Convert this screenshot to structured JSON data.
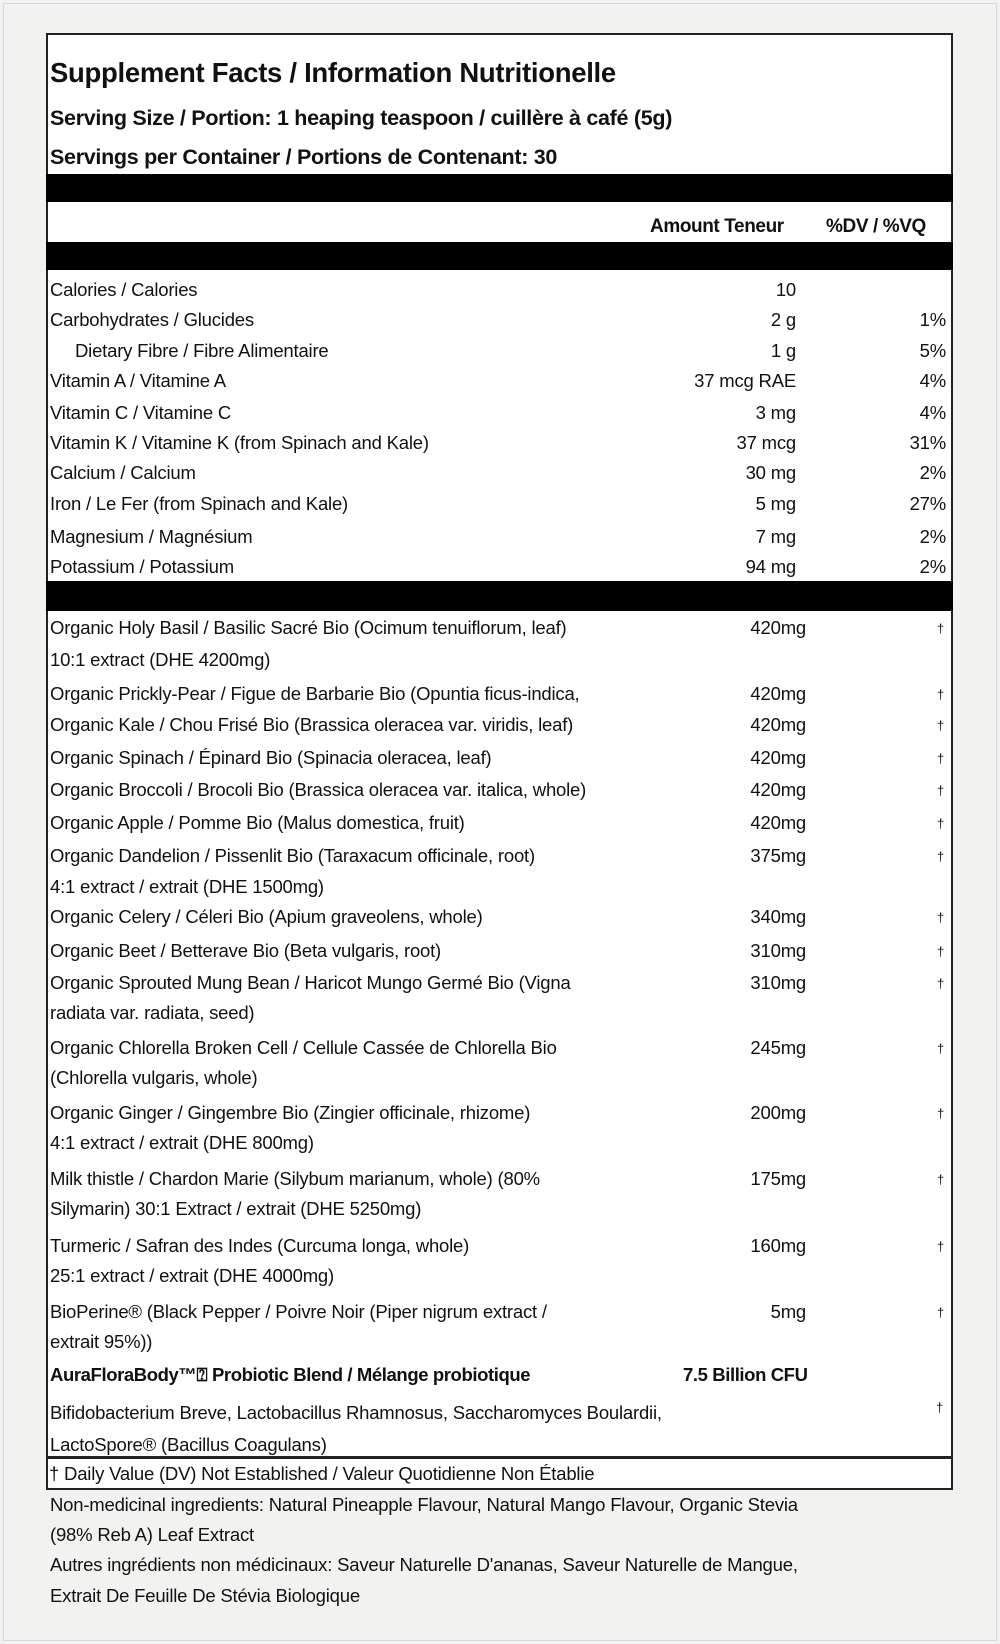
{
  "header": {
    "title": "Supplement Facts / Information Nutritionelle",
    "serving_size": "Serving Size / Portion: 1 heaping teaspoon / cuillère à café (5g)",
    "servings_per_container": "Servings per Container / Portions de Contenant: 30",
    "amount_col": "Amount Teneur",
    "dv_col": "%DV / %VQ"
  },
  "nutrients": [
    {
      "name": "Calories / Calories",
      "amount": "10",
      "dv": ""
    },
    {
      "name": "Carbohydrates / Glucides",
      "amount": "2 g",
      "dv": "1%"
    },
    {
      "name": "Dietary Fibre / Fibre Alimentaire",
      "amount": "1 g",
      "dv": "5%",
      "indent": true
    },
    {
      "name": "Vitamin A / Vitamine A",
      "amount": "37 mcg RAE",
      "dv": "4%"
    },
    {
      "name": "Vitamin C / Vitamine C",
      "amount": "3 mg",
      "dv": "4%"
    },
    {
      "name": "Vitamin K / Vitamine K (from Spinach and Kale)",
      "amount": "37 mcg",
      "dv": "31%"
    },
    {
      "name": "Calcium / Calcium",
      "amount": "30 mg",
      "dv": "2%"
    },
    {
      "name": "Iron / Le Fer (from Spinach and Kale)",
      "amount": "5 mg",
      "dv": "27%"
    },
    {
      "name": "Magnesium / Magnésium",
      "amount": "7 mg",
      "dv": "2%"
    },
    {
      "name": "Potassium / Potassium",
      "amount": "94 mg",
      "dv": "2%"
    }
  ],
  "ingredients": [
    {
      "lines": [
        "Organic Holy Basil / Basilic Sacré Bio (Ocimum tenuiflorum, leaf)",
        "10:1 extract (DHE 4200mg)"
      ],
      "amount": "420mg",
      "dv": "†"
    },
    {
      "lines": [
        "Organic Prickly-Pear / Figue de Barbarie Bio (Opuntia ficus-indica,"
      ],
      "amount": "420mg",
      "dv": "†"
    },
    {
      "lines": [
        "Organic Kale / Chou Frisé Bio (Brassica oleracea var. viridis, leaf)"
      ],
      "amount": "420mg",
      "dv": "†"
    },
    {
      "lines": [
        "Organic Spinach / Épinard Bio (Spinacia oleracea, leaf)"
      ],
      "amount": "420mg",
      "dv": "†"
    },
    {
      "lines": [
        "Organic Broccoli / Brocoli Bio (Brassica oleracea var. italica, whole)"
      ],
      "amount": "420mg",
      "dv": "†"
    },
    {
      "lines": [
        "Organic Apple / Pomme Bio (Malus domestica, fruit)"
      ],
      "amount": "420mg",
      "dv": "†"
    },
    {
      "lines": [
        "Organic Dandelion / Pissenlit Bio (Taraxacum officinale, root)",
        "4:1 extract / extrait (DHE 1500mg)"
      ],
      "amount": "375mg",
      "dv": "†"
    },
    {
      "lines": [
        "Organic Celery / Céleri Bio (Apium graveolens, whole)"
      ],
      "amount": "340mg",
      "dv": "†"
    },
    {
      "lines": [
        "Organic Beet / Betterave Bio (Beta vulgaris, root)"
      ],
      "amount": "310mg",
      "dv": "†"
    },
    {
      "lines": [
        "Organic Sprouted Mung Bean / Haricot Mungo Germé Bio (Vigna",
        "radiata var. radiata, seed)"
      ],
      "amount": "310mg",
      "dv": "†"
    },
    {
      "lines": [
        "Organic Chlorella Broken Cell / Cellule Cassée de Chlorella Bio",
        "(Chlorella vulgaris, whole)"
      ],
      "amount": "245mg",
      "dv": "†"
    },
    {
      "lines": [
        "Organic Ginger / Gingembre Bio (Zingier officinale, rhizome)",
        "4:1 extract / extrait (DHE 800mg)"
      ],
      "amount": "200mg",
      "dv": "†"
    },
    {
      "lines": [
        "Milk thistle / Chardon Marie (Silybum marianum, whole) (80%",
        "Silymarin) 30:1 Extract / extrait (DHE 5250mg)"
      ],
      "amount": "175mg",
      "dv": "†"
    },
    {
      "lines": [
        "Turmeric / Safran des Indes (Curcuma longa, whole)",
        "25:1 extract / extrait (DHE 4000mg)"
      ],
      "amount": "160mg",
      "dv": "†"
    },
    {
      "lines": [
        "BioPerine® (Black Pepper / Poivre Noir (Piper nigrum extract /",
        "extrait 95%))"
      ],
      "amount": "5mg",
      "dv": "†"
    }
  ],
  "probiotic": {
    "name": "AuraFloraBody™⍰ Probiotic Blend / Mélange probiotique",
    "amount": "7.5 Billion CFU",
    "lines": [
      "Bifidobacterium Breve, Lactobacillus Rhamnosus, Saccharomyces Boulardii,",
      "LactoSpore® (Bacillus Coagulans)"
    ],
    "dv": "†"
  },
  "footnote": "† Daily Value (DV) Not Established / Valeur Quotidienne Non Établie",
  "non_medicinal": [
    "Non-medicinal ingredients: Natural Pineapple Flavour, Natural Mango Flavour, Organic Stevia",
    "(98% Reb A) Leaf Extract",
    "Autres ingrédients non médicinaux: Saveur Naturelle D'ananas, Saveur Naturelle de Mangue,",
    "Extrait De Feuille De Stévia Biologique"
  ]
}
